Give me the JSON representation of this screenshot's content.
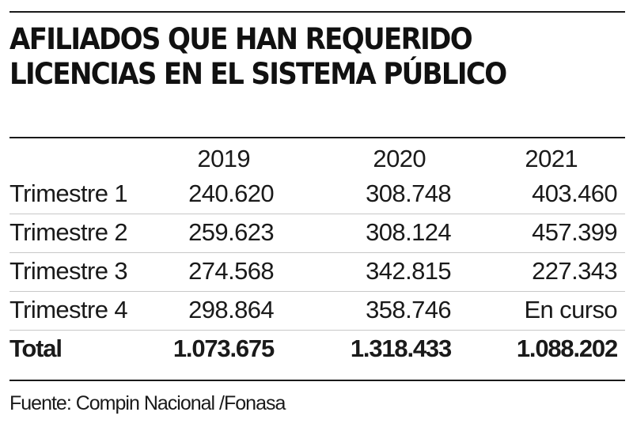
{
  "title": {
    "line1": "AFILIADOS QUE HAN REQUERIDO",
    "line2": "LICENCIAS EN EL SISTEMA PÚBLICO"
  },
  "table": {
    "columns": [
      "",
      "2019",
      "2020",
      "2021"
    ],
    "rows": [
      {
        "label": "Trimestre 1",
        "values": [
          "240.620",
          "308.748",
          "403.460"
        ]
      },
      {
        "label": "Trimestre 2",
        "values": [
          "259.623",
          "308.124",
          "457.399"
        ]
      },
      {
        "label": "Trimestre 3",
        "values": [
          "274.568",
          "342.815",
          "227.343"
        ]
      },
      {
        "label": "Trimestre 4",
        "values": [
          "298.864",
          "358.746",
          "En curso"
        ]
      }
    ],
    "total": {
      "label": "Total",
      "values": [
        "1.073.675",
        "1.318.433",
        "1.088.202"
      ]
    }
  },
  "source": "Fuente: Compin Nacional /Fonasa"
}
